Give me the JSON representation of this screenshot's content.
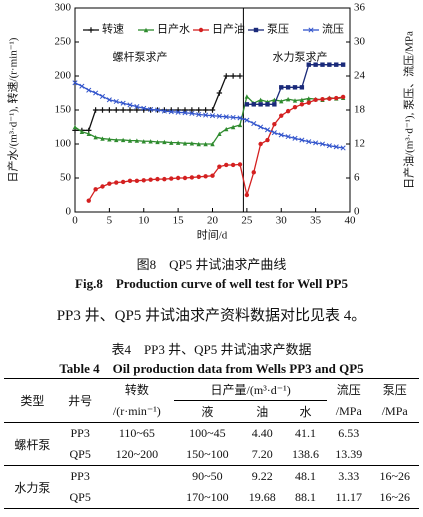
{
  "chart_data": {
    "type": "line",
    "xlabel": "时间/d",
    "ylabel": "日产水/(m³·d⁻¹), 转速/(r·min⁻¹)",
    "y2label": "日产油/(m³·d⁻¹), 泵压、流压/MPa",
    "annotations": [
      "螺杆泵求产",
      "水力泵求产"
    ],
    "x": [
      0,
      1,
      2,
      3,
      4,
      5,
      6,
      7,
      8,
      9,
      10,
      11,
      12,
      13,
      14,
      15,
      16,
      17,
      18,
      19,
      20,
      21,
      22,
      23,
      24,
      25,
      26,
      27,
      28,
      29,
      30,
      31,
      32,
      33,
      34,
      35,
      36,
      37,
      38,
      39
    ],
    "series": [
      {
        "name": "转速",
        "color": "#111111",
        "marker": "plus",
        "values": [
          120,
          120,
          120,
          150,
          150,
          150,
          150,
          150,
          150,
          150,
          150,
          150,
          150,
          150,
          150,
          150,
          150,
          150,
          150,
          150,
          150,
          175,
          200,
          200,
          200,
          null,
          null,
          null,
          null,
          null,
          null,
          null,
          null,
          null,
          null,
          null,
          null,
          null,
          null,
          null
        ]
      },
      {
        "name": "日产水",
        "color": "#2e8b2e",
        "marker": "triangle",
        "values": [
          125,
          118,
          115,
          110,
          108,
          107,
          106,
          106,
          105,
          105,
          104,
          104,
          103,
          103,
          102,
          102,
          101,
          101,
          100,
          100,
          100,
          115,
          122,
          125,
          128,
          170,
          160,
          165,
          162,
          165,
          163,
          166,
          164,
          165,
          167,
          166,
          165,
          168,
          167,
          168
        ]
      },
      {
        "name": "日产油",
        "color": "#d42020",
        "marker": "circle",
        "axis": "y2",
        "values": [
          null,
          null,
          2,
          4,
          4.5,
          5,
          5.2,
          5.3,
          5.5,
          5.5,
          5.6,
          5.7,
          5.8,
          5.8,
          5.9,
          6,
          6,
          6.1,
          6.2,
          6.3,
          6.4,
          8,
          8.3,
          8.3,
          8.4,
          3,
          7,
          12,
          12.7,
          15.5,
          17,
          17.8,
          18.5,
          19,
          19.3,
          19.8,
          19.9,
          20,
          20.1,
          20.3
        ]
      },
      {
        "name": "泵压",
        "color": "#1a2a7a",
        "marker": "square",
        "axis": "y2",
        "values": [
          null,
          null,
          null,
          null,
          null,
          null,
          null,
          null,
          null,
          null,
          null,
          null,
          null,
          null,
          null,
          null,
          null,
          null,
          null,
          null,
          null,
          null,
          null,
          null,
          null,
          19,
          19,
          19,
          19,
          19,
          22,
          22,
          22,
          22,
          26,
          26,
          26,
          26,
          26,
          26
        ]
      },
      {
        "name": "流压",
        "color": "#3355cc",
        "marker": "x",
        "axis": "y2",
        "values": [
          22.8,
          22.2,
          21.5,
          21,
          20.4,
          19.8,
          19.5,
          19.2,
          18.9,
          18.6,
          18.3,
          18.1,
          18,
          17.8,
          17.7,
          17.6,
          17.5,
          17.4,
          17.2,
          17.1,
          17,
          16.9,
          16.8,
          16.7,
          16.6,
          16.2,
          15.6,
          15,
          14.5,
          14,
          13.6,
          13.3,
          13,
          12.7,
          12.4,
          12.2,
          12,
          11.7,
          11.5,
          11.3
        ]
      }
    ],
    "xlim": [
      0,
      40
    ],
    "xticks": [
      0,
      5,
      10,
      15,
      20,
      25,
      30,
      35,
      40
    ],
    "ylim": [
      0,
      300
    ],
    "yticks": [
      0,
      50,
      100,
      150,
      200,
      250,
      300
    ],
    "y2lim": [
      0,
      36
    ],
    "y2ticks": [
      0,
      6,
      12,
      18,
      24,
      30,
      36
    ],
    "grid": false,
    "legend": "top"
  },
  "figure_caption": {
    "zh": "图8　QP5 井试油求产曲线",
    "en": "Fig.8　Production curve of well test for Well PP5"
  },
  "paragraph": "PP3 井、QP5 井试油求产资料数据对比见表 4。",
  "table_caption": {
    "zh": "表4　PP3 井、QP5 井试油求产数据",
    "en": "Table 4　Oil production data from Wells PP3 and QP5"
  },
  "table": {
    "header": {
      "type": "类型",
      "well": "井号",
      "speed": "转数",
      "speed_unit": "/(r·min⁻¹)",
      "output": "日产量/(m³·d⁻¹)",
      "liquid": "液",
      "oil": "油",
      "water": "水",
      "flow_pressure": "流压",
      "flow_pressure_unit": "/MPa",
      "pump_pressure": "泵压",
      "pump_pressure_unit": "/MPa"
    },
    "groups": [
      {
        "type": "螺杆泵",
        "rows": [
          {
            "well": "PP3",
            "speed": "110~65",
            "liquid": "100~45",
            "oil": "4.40",
            "water": "41.1",
            "flow_pressure": "6.53"
          },
          {
            "well": "QP5",
            "speed": "120~200",
            "liquid": "150~100",
            "oil": "7.20",
            "water": "138.6",
            "flow_pressure": "13.39"
          }
        ]
      },
      {
        "type": "水力泵",
        "rows": [
          {
            "well": "PP3",
            "liquid": "90~50",
            "oil": "9.22",
            "water": "48.1",
            "flow_pressure": "3.33",
            "pump_pressure": "16~26"
          },
          {
            "well": "QP5",
            "liquid": "170~100",
            "oil": "19.68",
            "water": "88.1",
            "flow_pressure": "11.17",
            "pump_pressure": "16~26"
          }
        ]
      }
    ]
  }
}
